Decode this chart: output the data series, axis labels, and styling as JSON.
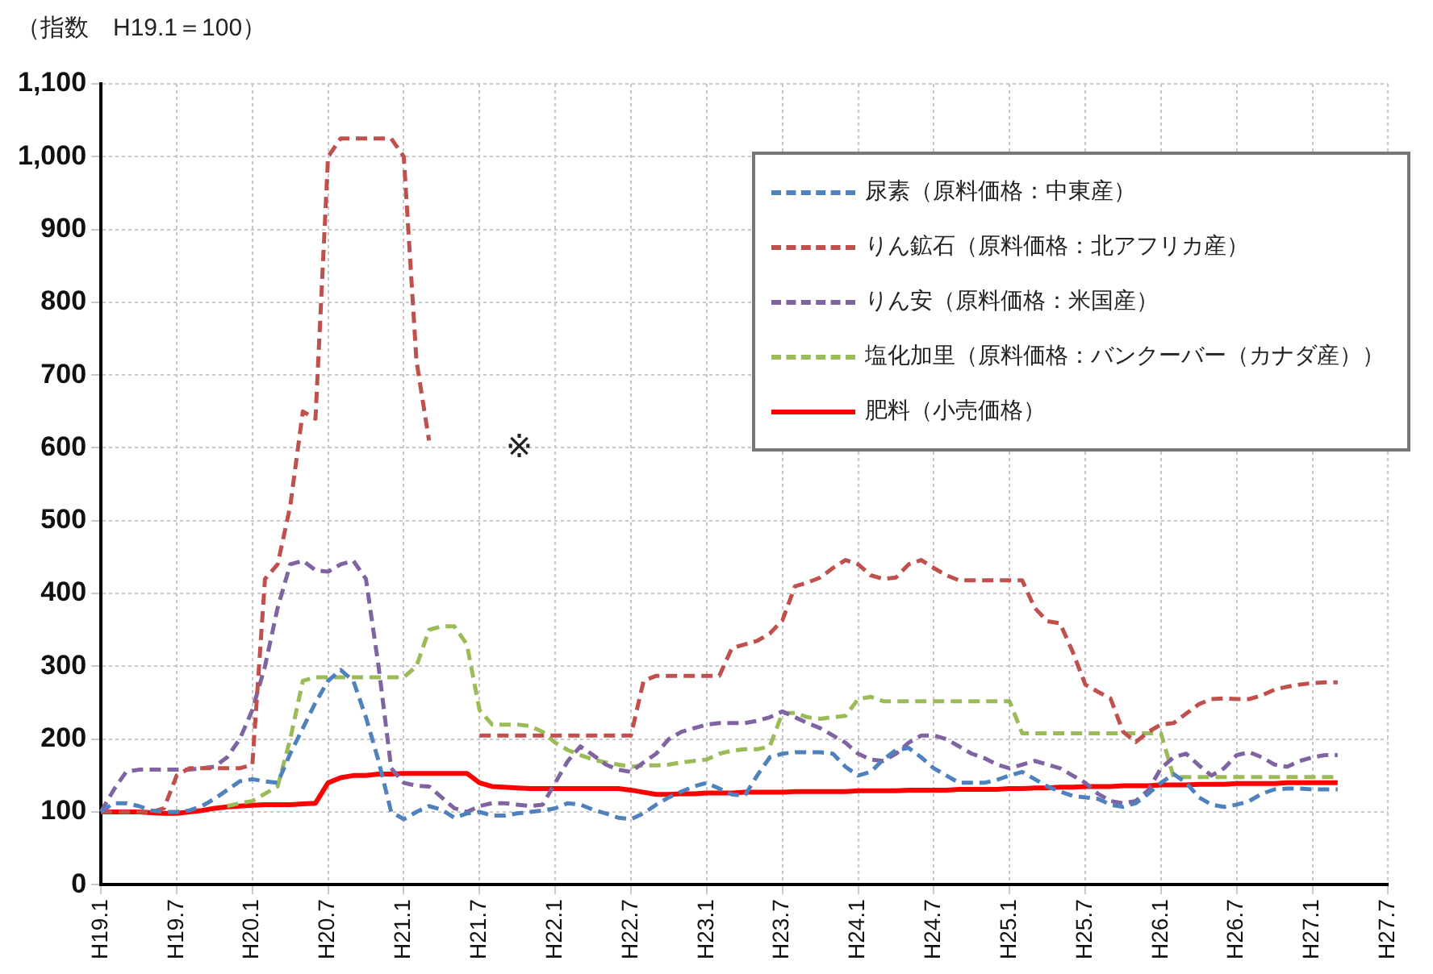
{
  "chart_data": {
    "type": "line",
    "ylabel": "（指数　H19.1＝100）",
    "categories": [
      "H19.1",
      null,
      null,
      null,
      null,
      null,
      "H19.7",
      null,
      null,
      null,
      null,
      null,
      "H20.1",
      null,
      null,
      null,
      null,
      null,
      "H20.7",
      null,
      null,
      null,
      null,
      null,
      "H21.1",
      null,
      null,
      null,
      null,
      null,
      "H21.7",
      null,
      null,
      null,
      null,
      null,
      "H22.1",
      null,
      null,
      null,
      null,
      null,
      "H22.7",
      null,
      null,
      null,
      null,
      null,
      "H23.1",
      null,
      null,
      null,
      null,
      null,
      "H23.7",
      null,
      null,
      null,
      null,
      null,
      "H24.1",
      null,
      null,
      null,
      null,
      null,
      "H24.7",
      null,
      null,
      null,
      null,
      null,
      "H25.1",
      null,
      null,
      null,
      null,
      null,
      "H25.7",
      null,
      null,
      null,
      null,
      null,
      "H26.1",
      null,
      null,
      null,
      null,
      null,
      "H26.7",
      null,
      null,
      null,
      null,
      null,
      "H27.1",
      null,
      null,
      null,
      null,
      null,
      "H27.7"
    ],
    "series": [
      {
        "name": "尿素（原料価格：中東産）",
        "color": "#4f81bd",
        "line_style": "dashed",
        "values": [
          100,
          112,
          112,
          108,
          102,
          100,
          100,
          102,
          108,
          118,
          130,
          142,
          145,
          142,
          140,
          180,
          215,
          250,
          280,
          295,
          280,
          230,
          170,
          100,
          90,
          100,
          108,
          103,
          92,
          98,
          100,
          95,
          95,
          98,
          100,
          102,
          105,
          112,
          110,
          103,
          98,
          92,
          90,
          98,
          110,
          120,
          128,
          135,
          140,
          132,
          124,
          122,
          150,
          175,
          180,
          182,
          182,
          182,
          180,
          162,
          150,
          155,
          172,
          185,
          188,
          175,
          160,
          150,
          140,
          140,
          140,
          144,
          150,
          155,
          145,
          135,
          128,
          122,
          120,
          118,
          110,
          107,
          112,
          125,
          140,
          152,
          140,
          120,
          110,
          107,
          110,
          115,
          125,
          131,
          132,
          132,
          131,
          131,
          131,
          null,
          null,
          null,
          null
        ]
      },
      {
        "name": "りん鉱石（原料価格：北アフリカ産）",
        "color": "#c0504d",
        "line_style": "dashed",
        "values": [
          100,
          100,
          100,
          100,
          100,
          105,
          150,
          160,
          160,
          160,
          160,
          160,
          165,
          420,
          440,
          520,
          650,
          640,
          1000,
          1025,
          1025,
          1025,
          1025,
          1025,
          1000,
          720,
          610,
          null,
          null,
          null,
          205,
          205,
          205,
          205,
          205,
          205,
          205,
          205,
          205,
          205,
          205,
          205,
          205,
          280,
          287,
          287,
          287,
          287,
          287,
          287,
          325,
          330,
          335,
          345,
          363,
          410,
          415,
          422,
          435,
          446,
          440,
          425,
          420,
          422,
          440,
          446,
          435,
          425,
          418,
          418,
          418,
          418,
          418,
          418,
          380,
          362,
          359,
          320,
          275,
          265,
          256,
          210,
          196,
          210,
          220,
          222,
          235,
          248,
          255,
          256,
          255,
          255,
          260,
          268,
          272,
          275,
          277,
          278,
          278,
          null,
          null,
          null,
          null
        ]
      },
      {
        "name": "りん安（原料価格：米国産）",
        "color": "#8064a2",
        "line_style": "dashed",
        "values": [
          100,
          130,
          155,
          158,
          158,
          158,
          158,
          158,
          160,
          162,
          175,
          200,
          240,
          300,
          380,
          440,
          445,
          432,
          430,
          440,
          445,
          420,
          300,
          160,
          140,
          136,
          135,
          120,
          105,
          100,
          108,
          112,
          112,
          110,
          108,
          110,
          140,
          170,
          190,
          178,
          165,
          158,
          155,
          168,
          180,
          200,
          210,
          215,
          220,
          222,
          222,
          222,
          225,
          230,
          238,
          230,
          222,
          215,
          205,
          195,
          180,
          172,
          170,
          180,
          195,
          205,
          205,
          200,
          190,
          180,
          174,
          165,
          160,
          165,
          170,
          165,
          160,
          150,
          140,
          125,
          115,
          112,
          115,
          130,
          160,
          175,
          180,
          164,
          150,
          160,
          178,
          182,
          175,
          165,
          162,
          170,
          175,
          178,
          178,
          null,
          null,
          null,
          null
        ]
      },
      {
        "name": "塩化加里（原料価格：バンクーバー（カナダ産））",
        "color": "#9bbb59",
        "line_style": "dashed",
        "values": [
          null,
          null,
          null,
          null,
          null,
          null,
          null,
          null,
          null,
          null,
          108,
          112,
          115,
          125,
          135,
          200,
          280,
          285,
          285,
          285,
          285,
          285,
          285,
          285,
          285,
          300,
          350,
          355,
          355,
          330,
          240,
          220,
          220,
          220,
          218,
          210,
          195,
          185,
          178,
          172,
          168,
          165,
          162,
          164,
          164,
          165,
          168,
          170,
          172,
          180,
          184,
          186,
          186,
          190,
          236,
          236,
          230,
          228,
          230,
          232,
          255,
          258,
          252,
          252,
          252,
          252,
          252,
          252,
          252,
          252,
          252,
          252,
          252,
          208,
          208,
          208,
          208,
          208,
          208,
          208,
          208,
          208,
          208,
          208,
          208,
          148,
          148,
          148,
          148,
          148,
          148,
          148,
          148,
          148,
          148,
          148,
          148,
          148,
          148,
          null,
          null,
          null,
          null
        ]
      },
      {
        "name": "肥料（小売価格）",
        "color": "#ff0000",
        "line_style": "solid",
        "values": [
          100,
          100,
          100,
          100,
          99,
          98,
          98,
          100,
          102,
          105,
          107,
          108,
          109,
          110,
          110,
          110,
          111,
          112,
          140,
          147,
          150,
          150,
          152,
          152,
          153,
          153,
          153,
          153,
          153,
          153,
          140,
          135,
          134,
          133,
          132,
          132,
          132,
          132,
          132,
          132,
          132,
          132,
          130,
          127,
          124,
          124,
          125,
          125,
          126,
          126,
          126,
          127,
          127,
          127,
          127,
          128,
          128,
          128,
          128,
          128,
          129,
          129,
          129,
          129,
          130,
          130,
          130,
          130,
          131,
          131,
          131,
          131,
          132,
          132,
          133,
          133,
          134,
          134,
          135,
          135,
          135,
          136,
          136,
          136,
          137,
          137,
          137,
          138,
          138,
          138,
          139,
          139,
          139,
          139,
          140,
          140,
          140,
          140,
          140,
          null,
          null,
          null,
          null
        ]
      }
    ],
    "ylim": [
      0,
      1100
    ],
    "yticks": [
      0,
      100,
      200,
      300,
      400,
      500,
      600,
      700,
      800,
      900,
      {
        "value": 1000,
        "label": "1,000"
      },
      {
        "value": 1100,
        "label": "1,100"
      }
    ],
    "grid": true,
    "legend": "top right",
    "marker": "none",
    "annotations": [
      "※"
    ]
  }
}
